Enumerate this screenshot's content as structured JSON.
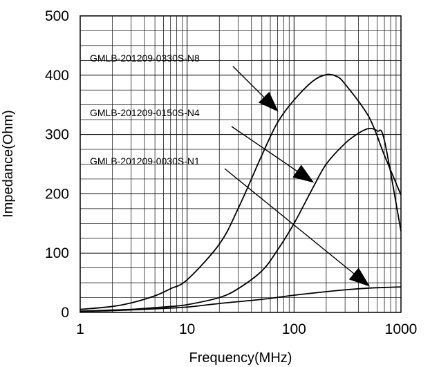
{
  "chart_data": {
    "type": "line",
    "x_scale": "log",
    "y_scale": "linear",
    "xlabel": "Frequency(MHz)",
    "ylabel": "Impedance(Ohm)",
    "xlim": [
      1,
      1000
    ],
    "ylim": [
      0,
      500
    ],
    "x_ticks": [
      {
        "value": 1,
        "label": "1"
      },
      {
        "value": 10,
        "label": "10"
      },
      {
        "value": 100,
        "label": "100"
      },
      {
        "value": 1000,
        "label": "1000"
      }
    ],
    "y_ticks": [
      {
        "value": 0,
        "label": "0"
      },
      {
        "value": 100,
        "label": "100"
      },
      {
        "value": 200,
        "label": "200"
      },
      {
        "value": 300,
        "label": "300"
      },
      {
        "value": 400,
        "label": "400"
      },
      {
        "value": 500,
        "label": "500"
      }
    ],
    "grid": true,
    "series": [
      {
        "points": [
          [
            1,
            5
          ],
          [
            2,
            10
          ],
          [
            3,
            16
          ],
          [
            5,
            28
          ],
          [
            7,
            40
          ],
          [
            10,
            55
          ],
          [
            20,
            115
          ],
          [
            30,
            175
          ],
          [
            50,
            265
          ],
          [
            70,
            320
          ],
          [
            100,
            358
          ],
          [
            150,
            390
          ],
          [
            200,
            401
          ],
          [
            250,
            398
          ],
          [
            300,
            385
          ],
          [
            500,
            330
          ],
          [
            700,
            265
          ],
          [
            1000,
            198
          ]
        ]
      },
      {
        "points": [
          [
            1,
            2
          ],
          [
            2,
            4
          ],
          [
            3,
            5
          ],
          [
            5,
            8
          ],
          [
            7,
            10
          ],
          [
            10,
            13
          ],
          [
            20,
            25
          ],
          [
            30,
            40
          ],
          [
            50,
            70
          ],
          [
            70,
            105
          ],
          [
            100,
            150
          ],
          [
            150,
            210
          ],
          [
            200,
            250
          ],
          [
            300,
            285
          ],
          [
            400,
            302
          ],
          [
            500,
            310
          ],
          [
            600,
            306
          ],
          [
            700,
            290
          ],
          [
            1000,
            137
          ]
        ]
      },
      {
        "points": [
          [
            1,
            2
          ],
          [
            2,
            3
          ],
          [
            5,
            6
          ],
          [
            10,
            9
          ],
          [
            20,
            15
          ],
          [
            50,
            22
          ],
          [
            100,
            29
          ],
          [
            200,
            35
          ],
          [
            300,
            38
          ],
          [
            500,
            41
          ],
          [
            700,
            42
          ],
          [
            1000,
            43
          ]
        ]
      }
    ],
    "annotations": [
      {
        "text": "GMLB-201209-0330S-N8",
        "points_to": [
          70,
          340
        ]
      },
      {
        "text": "GMLB-201209-0150S-N4",
        "points_to": [
          150,
          220
        ]
      },
      {
        "text": "GMLB-201209-0030S-N1",
        "points_to": [
          500,
          45
        ]
      }
    ]
  }
}
